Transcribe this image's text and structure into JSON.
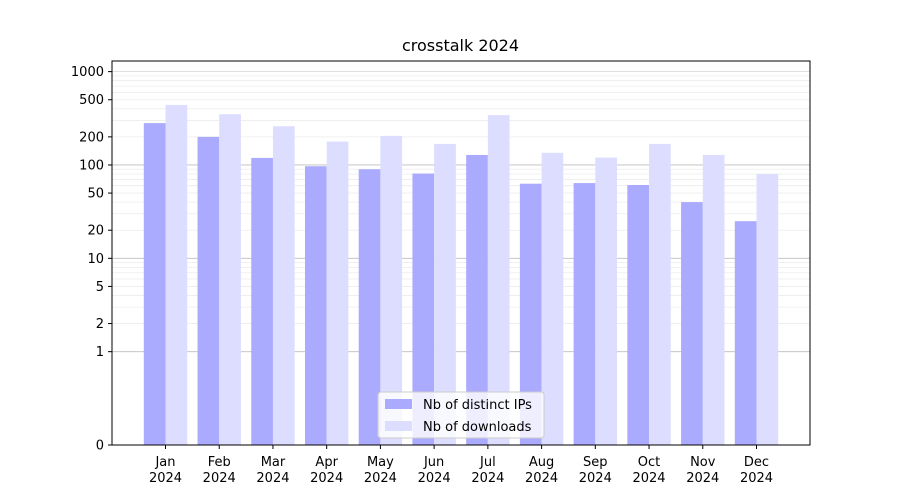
{
  "chart_data": {
    "type": "bar",
    "title": "crosstalk 2024",
    "xlabel": "",
    "ylabel": "",
    "y_scale": "symlog",
    "ylim": [
      0,
      1300
    ],
    "yticks": [
      0,
      1,
      2,
      5,
      10,
      20,
      50,
      100,
      200,
      500,
      1000
    ],
    "ytick_labels": [
      "0",
      "1",
      "2",
      "5",
      "10",
      "20",
      "50",
      "100",
      "200",
      "500",
      "1000"
    ],
    "categories": [
      "Jan",
      "Feb",
      "Mar",
      "Apr",
      "May",
      "Jun",
      "Jul",
      "Aug",
      "Sep",
      "Oct",
      "Nov",
      "Dec"
    ],
    "category_year": "2024",
    "series": [
      {
        "name": "Nb of distinct IPs",
        "color": "#aaaaff",
        "values": [
          281,
          200,
          119,
          97,
          90,
          81,
          128,
          63,
          64,
          61,
          40,
          25
        ]
      },
      {
        "name": "Nb of downloads",
        "color": "#ddddff",
        "values": [
          440,
          350,
          260,
          178,
          205,
          168,
          342,
          135,
          120,
          168,
          128,
          80
        ]
      }
    ],
    "legend_position": "bottom-center",
    "grid": "horizontal major and minor"
  }
}
